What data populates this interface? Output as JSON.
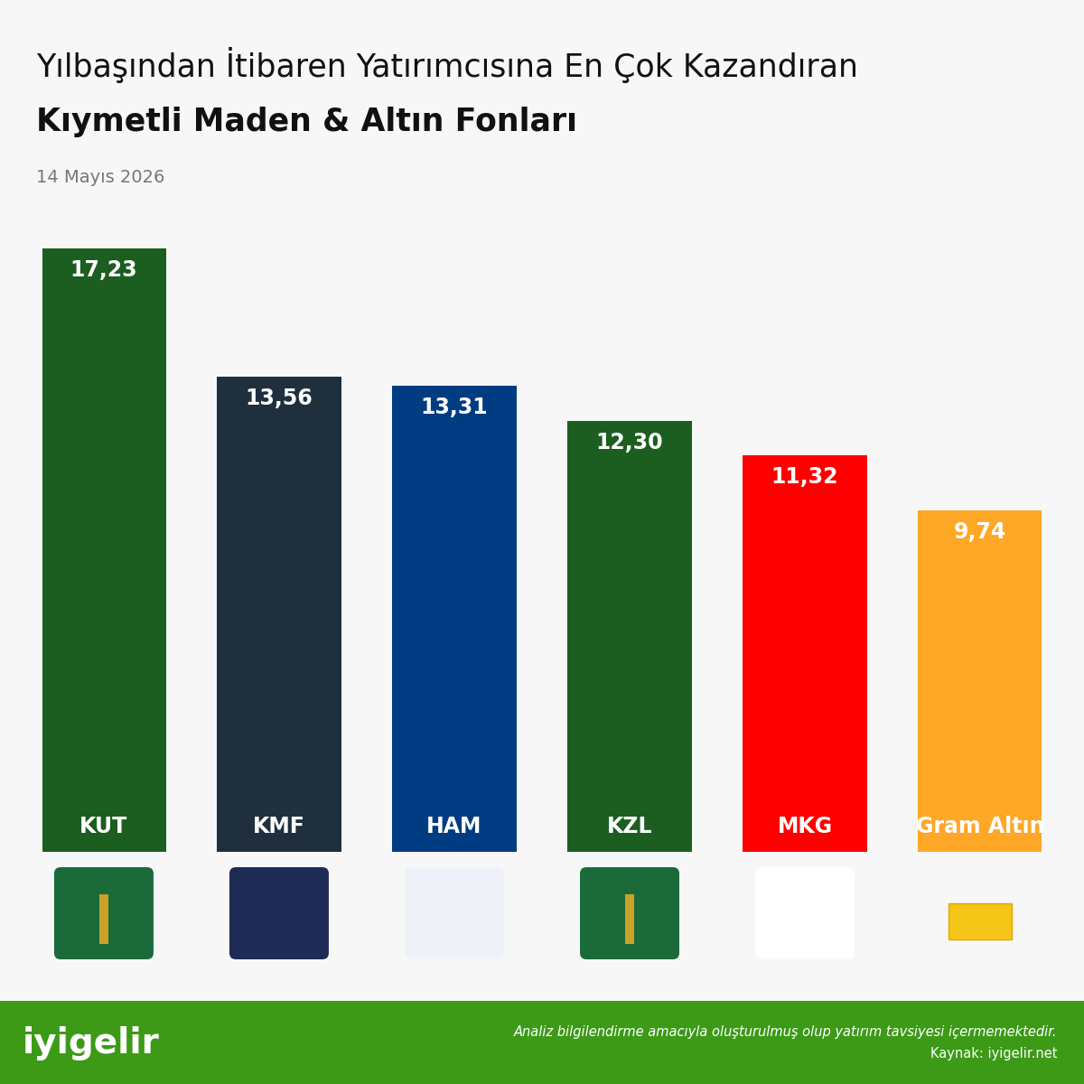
{
  "chart_data": {
    "type": "bar",
    "title": [
      "Yılbaşından İtibaren Yatırımcısına En Çok Kazandıran",
      "Kıymetli Maden & Altın Fonları"
    ],
    "subtitle": "14 Mayıs 2026",
    "categories": [
      "KUT",
      "KMF",
      "HAM",
      "KZL",
      "MKG",
      "Gram Altın"
    ],
    "values": [
      17.23,
      13.56,
      13.31,
      12.3,
      11.32,
      9.74
    ],
    "value_labels": [
      "17,23",
      "13,56",
      "13,31",
      "12,30",
      "11,32",
      "9,74"
    ],
    "colors": [
      "#1b5e20",
      "#1f2f3d",
      "#003c82",
      "#1b5e20",
      "#ff0000",
      "#ffa726"
    ],
    "ylim": [
      0,
      17.23
    ],
    "data_labels": true,
    "tick_labels": false,
    "grid": false,
    "footer": {
      "brand": "iyigelir",
      "disclaimer": "Analiz bilgilendirme amacıyla oluşturulmuş olup yatırım tavsiyesi içermemektedir.",
      "source": "Kaynak: iyigelir.net"
    }
  }
}
